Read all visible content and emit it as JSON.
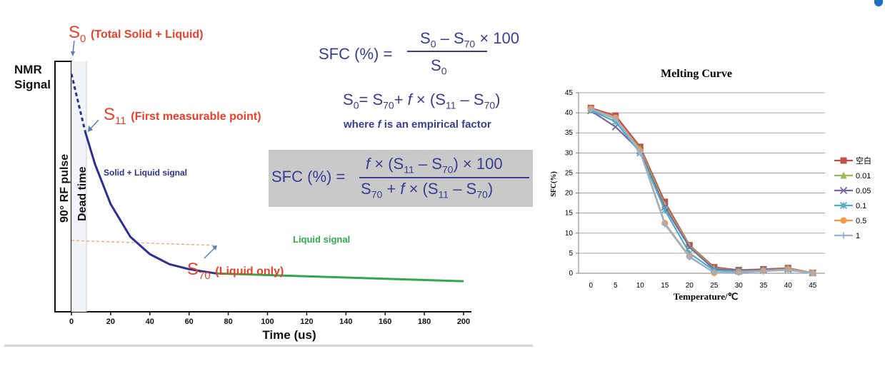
{
  "chart_data": [
    {
      "type": "line",
      "title": "",
      "xlabel": "Time (us)",
      "ylabel": "NMR Signal",
      "xlim": [
        0,
        200
      ],
      "x_ticks": [
        "0",
        "20",
        "40",
        "60",
        "80",
        "100",
        "120",
        "140",
        "160",
        "180",
        "200"
      ],
      "labels": {
        "s0": "S",
        "s0_sub": "0",
        "s0_text": "(Total Solid + Liquid)",
        "s11": "S",
        "s11_sub": "11",
        "s11_text": "(First measurable point)",
        "s70": "S",
        "s70_sub": "70",
        "s70_text": "(Liquid only)",
        "pulse": "90° RF pulse",
        "dead_time": "Dead time",
        "solid_liquid": "Solid + Liquid signal",
        "liquid": "Liquid signal"
      },
      "series": [
        {
          "name": "Solid + Liquid signal",
          "x": [
            0,
            7,
            12,
            20,
            30,
            40,
            50,
            60,
            74
          ],
          "y": [
            95,
            72,
            59,
            43,
            30,
            23,
            19,
            17,
            15.3
          ]
        },
        {
          "name": "Liquid signal",
          "x": [
            74,
            200
          ],
          "y": [
            15.3,
            12.2
          ]
        }
      ],
      "formulas": {
        "f1_lhs": "SFC (%) =",
        "f1_num": "S0 – S70 × 100",
        "f1_den": "S0",
        "f2": "S0= S70+ f × (S11 – S70)",
        "f2_note": "where f is an empirical factor",
        "f3_lhs": "SFC (%) =",
        "f3_num": "f × (S11 – S70) × 100",
        "f3_den": "S70 + f × (S11 – S70)"
      }
    },
    {
      "type": "line",
      "title": "Melting Curve",
      "xlabel": "Temperature/℃",
      "ylabel": "SFC(%)",
      "ylim": [
        0,
        45
      ],
      "y_ticks": [
        0,
        5,
        10,
        15,
        20,
        25,
        30,
        35,
        40,
        45
      ],
      "categories": [
        "0",
        "5",
        "10",
        "15",
        "20",
        "25",
        "30",
        "35",
        "40",
        "45"
      ],
      "legend_position": "right",
      "series": [
        {
          "name": "空白",
          "color": "#c0504d",
          "marker": "square",
          "values": [
            41.2,
            39.3,
            31.5,
            17.8,
            7.0,
            1.5,
            0.8,
            1.0,
            1.3,
            0.1
          ]
        },
        {
          "name": "0.01",
          "color": "#9bbb59",
          "marker": "triangle",
          "values": [
            40.8,
            38.5,
            31.0,
            17.0,
            6.8,
            1.2,
            0.6,
            0.8,
            1.2,
            0.1
          ]
        },
        {
          "name": "0.05",
          "color": "#8064a2",
          "marker": "x",
          "values": [
            40.5,
            36.5,
            30.5,
            16.5,
            6.5,
            1.0,
            0.7,
            0.9,
            1.1,
            0.1
          ]
        },
        {
          "name": "0.1",
          "color": "#4bacc6",
          "marker": "star",
          "values": [
            40.6,
            37.8,
            30.0,
            15.8,
            5.0,
            0.7,
            0.5,
            0.7,
            1.0,
            0.1
          ]
        },
        {
          "name": "0.5",
          "color": "#f79646",
          "marker": "circle",
          "values": [
            41.0,
            38.8,
            30.5,
            12.5,
            4.2,
            0.1,
            0.3,
            0.6,
            1.0,
            0.1
          ]
        },
        {
          "name": "1",
          "color": "#95b3d7",
          "marker": "plus",
          "values": [
            40.9,
            38.6,
            30.2,
            12.2,
            4.0,
            0.2,
            0.2,
            0.5,
            0.8,
            0.0
          ]
        }
      ]
    }
  ]
}
